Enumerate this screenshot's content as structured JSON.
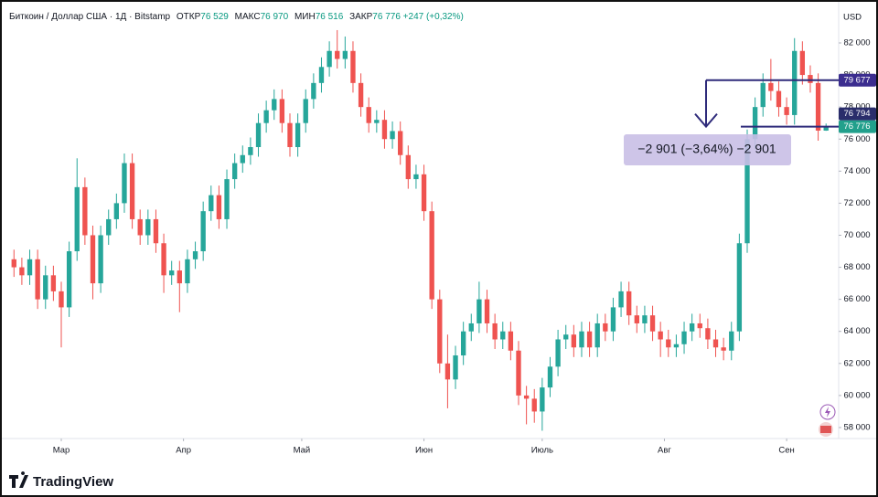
{
  "header": {
    "symbol": "Биткоин / Доллар США · 1Д · Bitstamp",
    "open_label": "ОТКР",
    "open": "76 529",
    "high_label": "МАКС",
    "high": "76 970",
    "low_label": "МИН",
    "low": "76 516",
    "close_label": "ЗАКР",
    "close": "76 776",
    "change": "+247 (+0,32%)",
    "currency": "USD"
  },
  "footer": {
    "brand": "TradingView"
  },
  "chart_data": {
    "type": "candlestick",
    "up_color": "#26a69a",
    "down_color": "#ef5350",
    "open": [
      68500,
      68000,
      67500,
      68500,
      66000,
      67500,
      66500,
      65500,
      69000,
      73000,
      70000,
      67000,
      70000,
      71000,
      72000,
      74500,
      71000,
      70000,
      71000,
      69500,
      67500,
      67800,
      67000,
      68500,
      69000,
      71500,
      72500,
      71000,
      73500,
      74500,
      75000,
      75500,
      77000,
      77800,
      78500,
      77000,
      75500,
      77000,
      78500,
      79500,
      80500,
      81500,
      81000,
      81500,
      79500,
      78000,
      77000,
      77200,
      76000,
      76500,
      75000,
      73500,
      73800,
      71500,
      66000,
      62000,
      61000,
      62500,
      64000,
      64500,
      66000,
      64500,
      63500,
      64000,
      62800,
      60000,
      59800,
      59000,
      60500,
      61800,
      63500,
      63800,
      63000,
      64000,
      63000,
      64500,
      64000,
      65500,
      66500,
      65000,
      64500,
      65000,
      64000,
      63500,
      63000,
      63200,
      64000,
      64500,
      64200,
      63500,
      63000,
      62800,
      64000,
      69500,
      76000,
      78000,
      79500,
      79000,
      78000,
      77500,
      81500,
      80000,
      79500,
      76529
    ],
    "high": [
      69100,
      68600,
      69100,
      69100,
      68100,
      68100,
      67100,
      69600,
      74800,
      73600,
      70600,
      70600,
      71600,
      72600,
      75100,
      75100,
      71600,
      71600,
      71600,
      70100,
      68400,
      68400,
      69100,
      69600,
      72100,
      73100,
      73100,
      74100,
      75100,
      75600,
      76100,
      77600,
      78400,
      79100,
      79100,
      77600,
      77600,
      79100,
      80100,
      81100,
      82100,
      82800,
      82400,
      82100,
      80100,
      78600,
      77800,
      77800,
      77100,
      77100,
      75600,
      74400,
      74400,
      72100,
      66600,
      63800,
      63100,
      64600,
      65100,
      67100,
      66600,
      65100,
      64600,
      64600,
      63400,
      60600,
      60400,
      61100,
      62400,
      64100,
      64400,
      64400,
      64600,
      64600,
      65100,
      65100,
      66100,
      67100,
      67100,
      65600,
      65600,
      65600,
      64600,
      64100,
      63800,
      64600,
      65100,
      65100,
      64800,
      64100,
      63600,
      64600,
      70100,
      76600,
      78600,
      80100,
      81000,
      79600,
      78600,
      82300,
      82100,
      80600,
      80100,
      76970
    ],
    "low": [
      67400,
      66900,
      66900,
      65400,
      65400,
      65900,
      63000,
      64900,
      68400,
      69400,
      66000,
      66400,
      69400,
      70400,
      71400,
      70400,
      69400,
      69400,
      68900,
      66400,
      66900,
      65200,
      66400,
      67900,
      68400,
      70900,
      70400,
      70400,
      72900,
      73900,
      74400,
      74900,
      76400,
      77200,
      76400,
      74900,
      74900,
      76400,
      77900,
      78900,
      79900,
      80400,
      80400,
      78900,
      77400,
      76400,
      76400,
      75400,
      75400,
      74400,
      72900,
      72900,
      70900,
      65400,
      61400,
      59200,
      60400,
      61900,
      63400,
      63900,
      63900,
      62900,
      62900,
      62200,
      59400,
      58200,
      58300,
      57800,
      59900,
      61200,
      62900,
      62400,
      62400,
      62400,
      62400,
      63400,
      63400,
      64900,
      64400,
      63900,
      63900,
      63400,
      62400,
      62400,
      62400,
      62600,
      63400,
      63600,
      62900,
      62400,
      62200,
      62200,
      63400,
      68900,
      75400,
      77400,
      78400,
      77400,
      76900,
      76900,
      79400,
      78900,
      75900,
      76516
    ],
    "close": [
      68000,
      67500,
      68500,
      66000,
      67500,
      66500,
      65500,
      69000,
      73000,
      70000,
      67000,
      70000,
      71000,
      72000,
      74500,
      71000,
      70000,
      71000,
      69500,
      67500,
      67800,
      67000,
      68500,
      69000,
      71500,
      72500,
      71000,
      73500,
      74500,
      75000,
      75500,
      77000,
      77800,
      78500,
      77000,
      75500,
      77000,
      78500,
      79500,
      80500,
      81500,
      81000,
      81500,
      79500,
      78000,
      77000,
      77200,
      76000,
      76500,
      75000,
      73500,
      73800,
      71500,
      66000,
      62000,
      61000,
      62500,
      64000,
      64500,
      66000,
      64500,
      63500,
      64000,
      62800,
      60000,
      59800,
      59000,
      60500,
      61800,
      63500,
      63800,
      63000,
      64000,
      63000,
      64500,
      64000,
      65500,
      66500,
      65000,
      64500,
      65000,
      64000,
      63500,
      63000,
      63200,
      64000,
      64500,
      64200,
      63500,
      63000,
      62800,
      64000,
      69500,
      76000,
      78000,
      79500,
      79000,
      78000,
      77500,
      81500,
      80000,
      79500,
      76529,
      76776
    ],
    "xlim": [
      -1.54,
      104.6
    ],
    "xticks": [
      {
        "value": 6,
        "label": "Мар"
      },
      {
        "value": 21.5,
        "label": "Апр"
      },
      {
        "value": 36.5,
        "label": "Май"
      },
      {
        "value": 52,
        "label": "Июн"
      },
      {
        "value": 67,
        "label": "Июль"
      },
      {
        "value": 82.5,
        "label": "Авг"
      },
      {
        "value": 98,
        "label": "Сен"
      }
    ],
    "ylim": [
      57314,
      84565
    ],
    "yticks": [
      {
        "value": 58000,
        "label": "58 000"
      },
      {
        "value": 60000,
        "label": "60 000"
      },
      {
        "value": 62000,
        "label": "62 000"
      },
      {
        "value": 64000,
        "label": "64 000"
      },
      {
        "value": 66000,
        "label": "66 000"
      },
      {
        "value": 68000,
        "label": "68 000"
      },
      {
        "value": 70000,
        "label": "70 000"
      },
      {
        "value": 72000,
        "label": "72 000"
      },
      {
        "value": 74000,
        "label": "74 000"
      },
      {
        "value": 76000,
        "label": "76 000"
      },
      {
        "value": 78000,
        "label": "78 000"
      },
      {
        "value": 80000,
        "label": "80 000"
      },
      {
        "value": 82000,
        "label": "82 000"
      }
    ],
    "price_labels": [
      {
        "value": 79677,
        "label": "79 677",
        "color": "#3b2d8f"
      },
      {
        "value": 76794,
        "label": "76 794",
        "color": "#2a2d6b"
      },
      {
        "value": 76776,
        "label": "76 776",
        "color": "#22a08c"
      }
    ],
    "measure": {
      "from": 79677,
      "to": 76776,
      "label": "−2 901 (−3,64%) −2 901"
    }
  }
}
